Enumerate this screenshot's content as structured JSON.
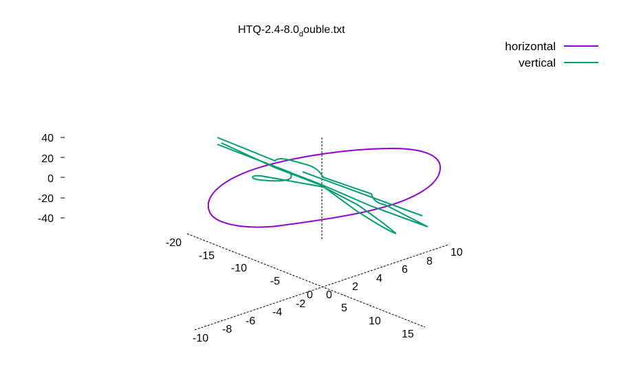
{
  "chart_data": {
    "type": "line3d",
    "title": {
      "main": "HTQ-2.4-8.0",
      "subscript": "d",
      "rest": "ouble.txt"
    },
    "legend": {
      "placement": "top-right",
      "entries": [
        {
          "label": "horizontal",
          "color": "#9400d3"
        },
        {
          "label": "vertical",
          "color": "#009e73"
        }
      ]
    },
    "z_axis": {
      "ticks": [
        "40",
        "20",
        "0",
        "-20",
        "-40"
      ],
      "range": [
        -40,
        40
      ]
    },
    "x_axis": {
      "ticks": [
        "-20",
        "-15",
        "-10",
        "-5",
        "0",
        "5",
        "10",
        "15"
      ],
      "range": [
        -20,
        15
      ]
    },
    "y_axis": {
      "ticks": [
        "-10",
        "-8",
        "-6",
        "-4",
        "-2",
        "0",
        "2",
        "4",
        "6",
        "8",
        "10"
      ],
      "range": [
        -10,
        10
      ]
    },
    "grid": false,
    "series": [
      {
        "name": "horizontal",
        "color": "#9400d3",
        "shape": "closed-loop"
      },
      {
        "name": "vertical",
        "color": "#009e73",
        "shape": "figure-eight"
      }
    ]
  }
}
